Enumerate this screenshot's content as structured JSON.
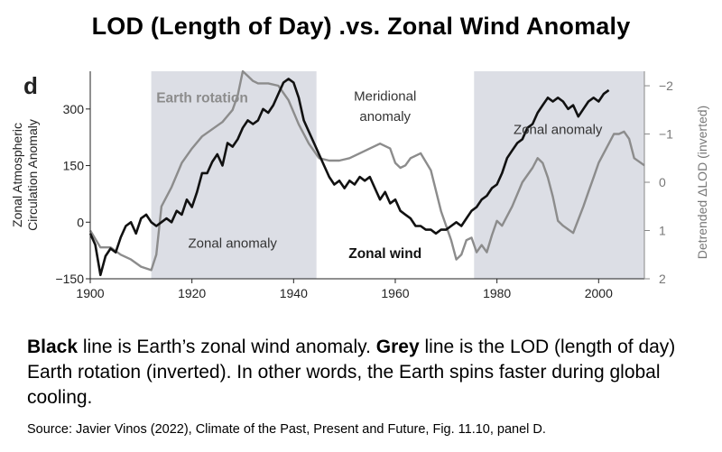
{
  "title": "LOD (Length of Day)  .vs.  Zonal Wind Anomaly",
  "panel_label": "d",
  "caption": {
    "black_word": "Black",
    "black_text": " line is Earth’s zonal wind anomaly.  ",
    "grey_word": "Grey",
    "grey_text": " line is the LOD (length of day) Earth rotation (inverted).  In other words, the Earth spins faster during global cooling."
  },
  "source": "Source: Javier Vinos (2022), Climate of the Past, Present and Future, Fig. 11.10, panel D.",
  "chart_data": {
    "type": "line",
    "xlim": [
      1900,
      2009
    ],
    "ylim": [
      -150,
      400
    ],
    "y2lim": [
      2,
      -2.3
    ],
    "x_ticks": [
      "1900",
      "1920",
      "1940",
      "1960",
      "1980",
      "2000"
    ],
    "y_ticks": [
      "300",
      "150",
      "0",
      "−150"
    ],
    "y2_ticks": [
      "−2",
      "−1",
      "0",
      "1",
      "2"
    ],
    "ylabel": [
      "Zonal Atmospheric",
      "Circulation Anomaly"
    ],
    "y2label": "Detrended ΔLOD (inverted)",
    "colors": {
      "zonal": "#111111",
      "lod": "#8c8c8c",
      "shade": "#dcdee5"
    },
    "shaded_periods": [
      [
        1912,
        1944.5
      ],
      [
        1975.5,
        2009
      ]
    ],
    "annotations": [
      {
        "text": "Earth rotation",
        "x": 1913,
        "y": 318,
        "color": "#8c8c8c",
        "bold": true
      },
      {
        "text": "Meridional",
        "x": 1958,
        "y": 322,
        "color": "#333333",
        "bold": false
      },
      {
        "text": "anomaly",
        "x": 1958,
        "y": 268,
        "color": "#333333",
        "bold": false
      },
      {
        "text": "Zonal anomaly",
        "x": 1992,
        "y": 234,
        "color": "#333333",
        "bold": false
      },
      {
        "text": "Zonal anomaly",
        "x": 1928,
        "y": -68,
        "color": "#333333",
        "bold": false
      },
      {
        "text": "Zonal wind",
        "x": 1958,
        "y": -95,
        "color": "#111111",
        "bold": true
      }
    ],
    "series": [
      {
        "key": "zonal",
        "x": [
          1900,
          1901,
          1902,
          1903,
          1904,
          1905,
          1906,
          1907,
          1908,
          1909,
          1910,
          1911,
          1912,
          1913,
          1914,
          1915,
          1916,
          1917,
          1918,
          1919,
          1920,
          1921,
          1922,
          1923,
          1924,
          1925,
          1926,
          1927,
          1928,
          1929,
          1930,
          1931,
          1932,
          1933,
          1934,
          1935,
          1936,
          1937,
          1938,
          1939,
          1940,
          1941,
          1942,
          1943,
          1944,
          1945,
          1946,
          1947,
          1948,
          1949,
          1950,
          1951,
          1952,
          1953,
          1954,
          1955,
          1956,
          1957,
          1958,
          1959,
          1960,
          1961,
          1962,
          1963,
          1964,
          1965,
          1966,
          1967,
          1968,
          1969,
          1970,
          1971,
          1972,
          1973,
          1974,
          1975,
          1976,
          1977,
          1978,
          1979,
          1980,
          1981,
          1982,
          1983,
          1984,
          1985,
          1986,
          1987,
          1988,
          1989,
          1990,
          1991,
          1992,
          1993,
          1994,
          1995,
          1996,
          1997,
          1998,
          1999,
          2000,
          2001,
          2002
        ],
        "y": [
          -30,
          -60,
          -140,
          -90,
          -70,
          -80,
          -40,
          -10,
          0,
          -30,
          10,
          20,
          0,
          -10,
          0,
          10,
          0,
          30,
          20,
          60,
          40,
          80,
          130,
          130,
          160,
          180,
          150,
          210,
          200,
          220,
          250,
          270,
          260,
          270,
          300,
          290,
          310,
          340,
          370,
          380,
          370,
          330,
          270,
          240,
          210,
          180,
          150,
          120,
          100,
          110,
          90,
          110,
          100,
          120,
          110,
          120,
          90,
          60,
          80,
          50,
          60,
          30,
          20,
          10,
          -10,
          -10,
          -20,
          -20,
          -30,
          -20,
          -20,
          -10,
          0,
          -10,
          10,
          30,
          40,
          60,
          70,
          90,
          100,
          130,
          170,
          190,
          210,
          220,
          250,
          260,
          290,
          310,
          330,
          320,
          330,
          320,
          300,
          310,
          280,
          300,
          320,
          330,
          320,
          340,
          350
        ]
      },
      {
        "key": "lod",
        "x": [
          1900,
          1902,
          1904,
          1906,
          1908,
          1910,
          1912,
          1913,
          1914,
          1916,
          1918,
          1920,
          1922,
          1924,
          1926,
          1928,
          1929,
          1930,
          1931,
          1932,
          1933,
          1935,
          1937,
          1939,
          1941,
          1943,
          1945,
          1947,
          1949,
          1951,
          1953,
          1955,
          1957,
          1959,
          1960,
          1961,
          1962,
          1963,
          1965,
          1967,
          1969,
          1971,
          1972,
          1973,
          1974,
          1975,
          1976,
          1977,
          1978,
          1979,
          1980,
          1981,
          1983,
          1985,
          1987,
          1988,
          1989,
          1990,
          1991,
          1992,
          1993,
          1995,
          1997,
          1998,
          1999,
          2000,
          2001,
          2002,
          2003,
          2004,
          2005,
          2006,
          2007,
          2009
        ],
        "y": [
          1.0,
          1.35,
          1.35,
          1.5,
          1.6,
          1.75,
          1.82,
          1.5,
          0.5,
          0.1,
          -0.4,
          -0.7,
          -0.95,
          -1.1,
          -1.25,
          -1.5,
          -1.8,
          -2.3,
          -2.2,
          -2.1,
          -2.05,
          -2.05,
          -2.0,
          -1.7,
          -1.2,
          -0.8,
          -0.5,
          -0.45,
          -0.45,
          -0.5,
          -0.6,
          -0.7,
          -0.8,
          -0.7,
          -0.4,
          -0.3,
          -0.35,
          -0.5,
          -0.6,
          -0.25,
          0.6,
          1.2,
          1.6,
          1.5,
          1.2,
          1.15,
          1.45,
          1.3,
          1.45,
          1.1,
          0.8,
          0.9,
          0.5,
          0.0,
          -0.3,
          -0.5,
          -0.4,
          -0.1,
          0.3,
          0.8,
          0.9,
          1.05,
          0.5,
          0.2,
          -0.1,
          -0.4,
          -0.6,
          -0.8,
          -1.0,
          -1.0,
          -1.05,
          -0.9,
          -0.5,
          -0.35
        ]
      }
    ]
  }
}
